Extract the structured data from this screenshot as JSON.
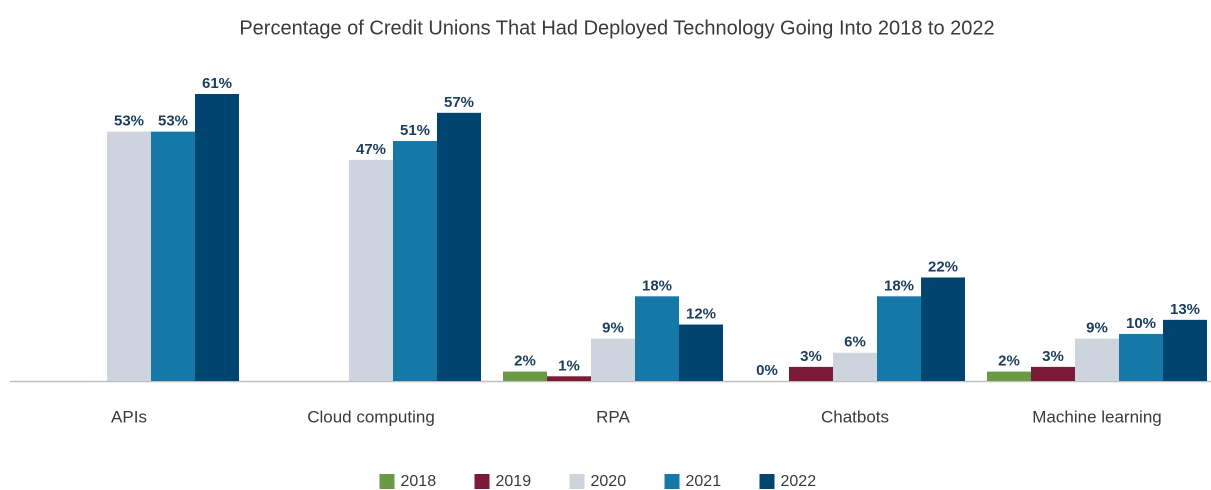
{
  "chart_data": {
    "type": "bar",
    "title": "Percentage of Credit Unions That Had Deployed Technology Going Into 2018 to 2022",
    "categories": [
      "APIs",
      "Cloud computing",
      "RPA",
      "Chatbots",
      "Machine learning"
    ],
    "series": [
      {
        "name": "2018",
        "color": "#6a9a45",
        "values": [
          null,
          null,
          2,
          0,
          2
        ],
        "value_labels": [
          null,
          null,
          "2%",
          "0%",
          "2%"
        ]
      },
      {
        "name": "2019",
        "color": "#7b1b37",
        "values": [
          null,
          null,
          1,
          3,
          3
        ],
        "value_labels": [
          null,
          null,
          "1%",
          "3%",
          "3%"
        ]
      },
      {
        "name": "2020",
        "color": "#cdd4dd",
        "values": [
          53,
          47,
          9,
          6,
          9
        ],
        "value_labels": [
          "53%",
          "47%",
          "9%",
          "6%",
          "9%"
        ]
      },
      {
        "name": "2021",
        "color": "#1578a6",
        "values": [
          53,
          51,
          18,
          18,
          10
        ],
        "value_labels": [
          "53%",
          "51%",
          "18%",
          "18%",
          "10%"
        ]
      },
      {
        "name": "2022",
        "color": "#004570",
        "values": [
          61,
          57,
          12,
          22,
          13
        ],
        "value_labels": [
          "61%",
          "57%",
          "12%",
          "22%",
          "13%"
        ]
      }
    ]
  }
}
